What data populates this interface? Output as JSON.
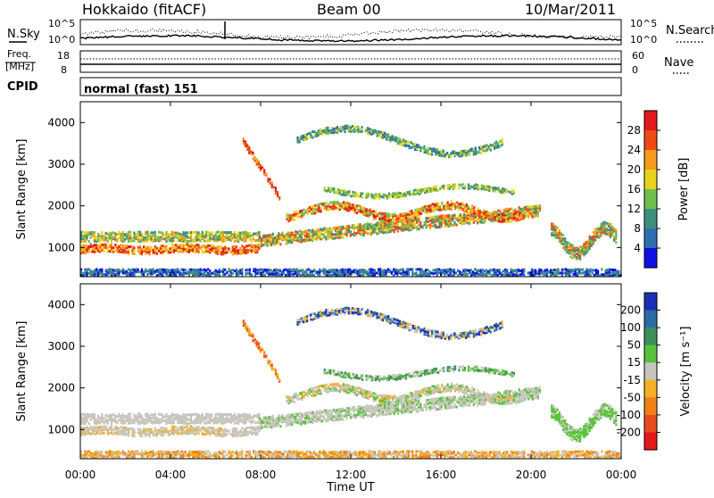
{
  "header": {
    "station": "Hokkaido (fitACF)",
    "beam": "Beam 00",
    "date": "10/Mar/2011"
  },
  "noise_panel": {
    "left_label": "N.Sky",
    "right_label": "N.Search",
    "left_ticks": [
      "10^5",
      "10^0"
    ],
    "right_ticks": [
      "10^5",
      "10^0"
    ]
  },
  "freq_panel": {
    "left_label_top": "Freq.",
    "left_label_bottom": "[MHz]",
    "right_label": "Nave",
    "left_ticks": [
      "18",
      "8"
    ],
    "right_ticks": [
      "60",
      "0"
    ]
  },
  "cpid": {
    "label": "CPID",
    "value": "normal (fast) 151"
  },
  "chart_data": [
    {
      "type": "heatmap",
      "quantity": "Power",
      "ylabel": "Slant Range [km]",
      "yticks": [
        1000,
        2000,
        3000,
        4000
      ],
      "ylim": [
        300,
        4500
      ],
      "colorbar_label": "Power [dB]",
      "colorbar_ticks": [
        "4",
        "8",
        "12",
        "16",
        "20",
        "24",
        "28"
      ],
      "colors": [
        "#1010e0",
        "#2f6fb0",
        "#3f8f7f",
        "#6fbf4f",
        "#e9d21d",
        "#f59b1d",
        "#ee4a16",
        "#e41a1a"
      ]
    },
    {
      "type": "heatmap",
      "quantity": "Velocity",
      "ylabel": "Slant Range [km]",
      "yticks": [
        1000,
        2000,
        3000,
        4000
      ],
      "ylim": [
        300,
        4500
      ],
      "colorbar_label": "Velocity [m s⁻¹]",
      "colorbar_ticks": [
        "200",
        "100",
        "50",
        "15",
        "-15",
        "-50",
        "-100",
        "-200"
      ],
      "colors": [
        "#1b2fb4",
        "#2c6ba6",
        "#3e8f5c",
        "#58c33a",
        "#c7c5bd",
        "#f2b126",
        "#f08019",
        "#e84b1f",
        "#e21a1a"
      ]
    }
  ],
  "x_axis": {
    "label": "Time UT",
    "ticks": [
      "00:00",
      "04:00",
      "08:00",
      "12:00",
      "16:00",
      "20:00",
      "00:00"
    ]
  }
}
